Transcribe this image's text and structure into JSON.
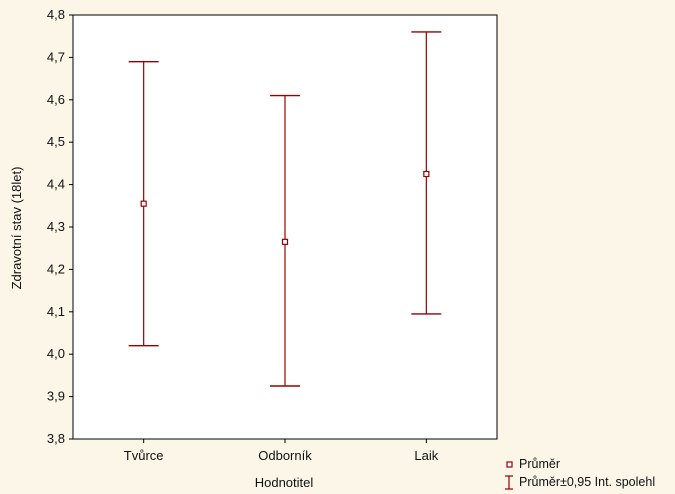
{
  "chart_data": {
    "type": "scatter",
    "variant": "error-bars",
    "categories": [
      "Tvůrce",
      "Odborník",
      "Laik"
    ],
    "series": [
      {
        "name": "Průměr",
        "means": [
          4.355,
          4.265,
          4.425
        ],
        "lower": [
          4.02,
          3.925,
          4.095
        ],
        "upper": [
          4.69,
          4.61,
          4.76
        ]
      }
    ],
    "xlabel": "Hodnotitel",
    "ylabel": "Zdravotní stav (18let)",
    "ylim": [
      3.8,
      4.8
    ],
    "yticks": [
      "3,8",
      "3,9",
      "4,0",
      "4,1",
      "4,2",
      "4,3",
      "4,4",
      "4,5",
      "4,6",
      "4,7",
      "4,8"
    ],
    "legend": {
      "placement": "bottom-right",
      "mean_label": "Průměr",
      "ci_label": "Průměr±0,95 Int. spolehl"
    },
    "grid": false,
    "colors": {
      "series": "#990000",
      "axis": "#000000",
      "plot_background": "#ffffff"
    }
  }
}
